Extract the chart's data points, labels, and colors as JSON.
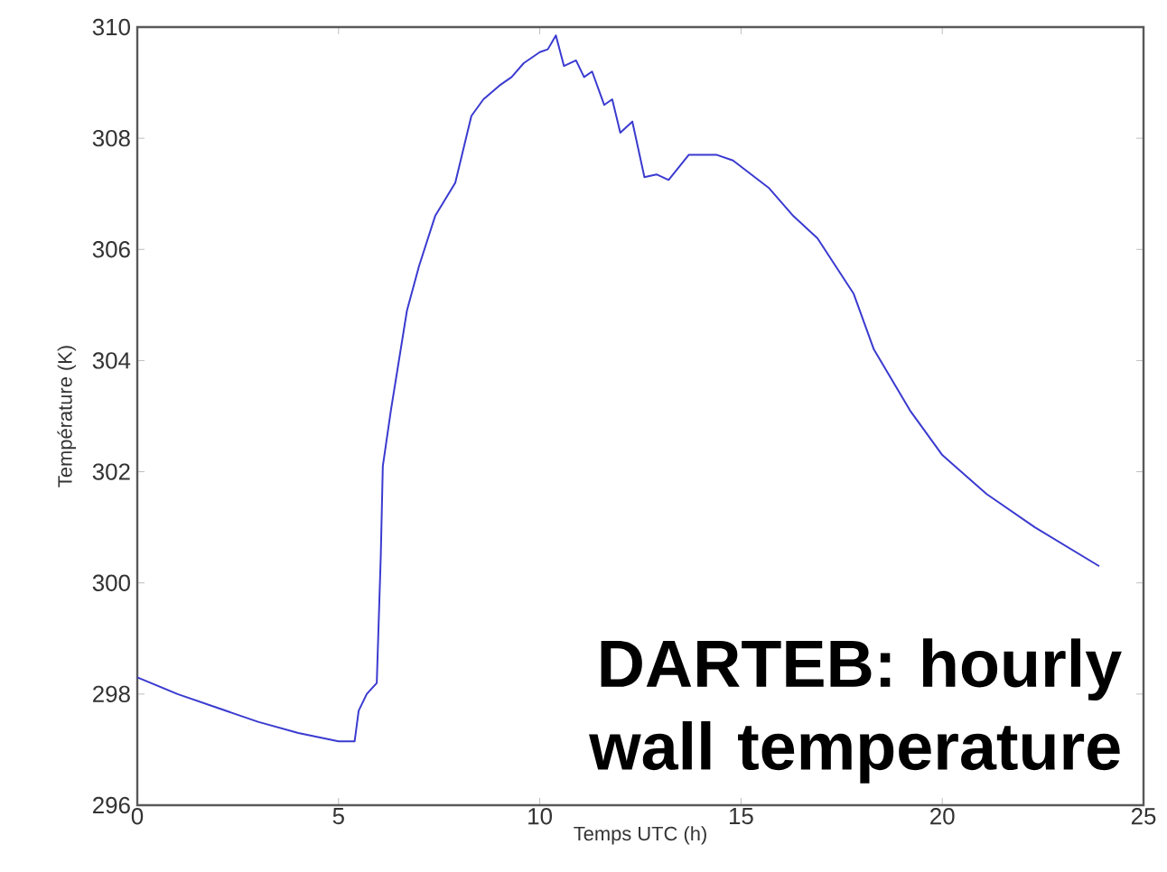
{
  "chart_data": {
    "type": "line",
    "xlabel": "Temps UTC (h)",
    "ylabel": "Température (K)",
    "annotations": [
      "DARTEB: hourly wall temperature"
    ],
    "xlim": [
      0,
      25
    ],
    "xticks": [
      0,
      5,
      10,
      15,
      20,
      25
    ],
    "ylim": [
      296,
      310
    ],
    "yticks": [
      296,
      298,
      300,
      302,
      304,
      306,
      308,
      310
    ],
    "grid": false,
    "marker": "none",
    "line_style": "solid",
    "series": [
      {
        "color": "#3a3ad0",
        "x": [
          0,
          1,
          2,
          3,
          4,
          5,
          5.4,
          5.5,
          5.7,
          5.95,
          6.05,
          6.1,
          6.3,
          6.7,
          7.0,
          7.4,
          7.9,
          8.3,
          8.6,
          9.0,
          9.3,
          9.6,
          10.0,
          10.2,
          10.4,
          10.6,
          10.9,
          11.1,
          11.3,
          11.6,
          11.8,
          12.0,
          12.3,
          12.6,
          12.9,
          13.2,
          13.7,
          14.4,
          14.8,
          15.7,
          16.3,
          16.9,
          17.8,
          18.3,
          19.2,
          20.0,
          21.1,
          22.3,
          23.9
        ],
        "values": [
          298.3,
          298.0,
          297.75,
          297.5,
          297.3,
          297.15,
          297.15,
          297.7,
          298.0,
          298.2,
          300.5,
          302.1,
          303.1,
          304.9,
          305.7,
          306.6,
          307.2,
          308.4,
          308.7,
          308.95,
          309.1,
          309.35,
          309.55,
          309.6,
          309.85,
          309.3,
          309.4,
          309.1,
          309.2,
          308.6,
          308.7,
          308.1,
          308.3,
          307.3,
          307.35,
          307.25,
          307.7,
          307.7,
          307.6,
          307.1,
          306.6,
          306.2,
          305.2,
          304.2,
          303.1,
          302.3,
          301.6,
          301.0,
          300.3
        ]
      }
    ]
  }
}
